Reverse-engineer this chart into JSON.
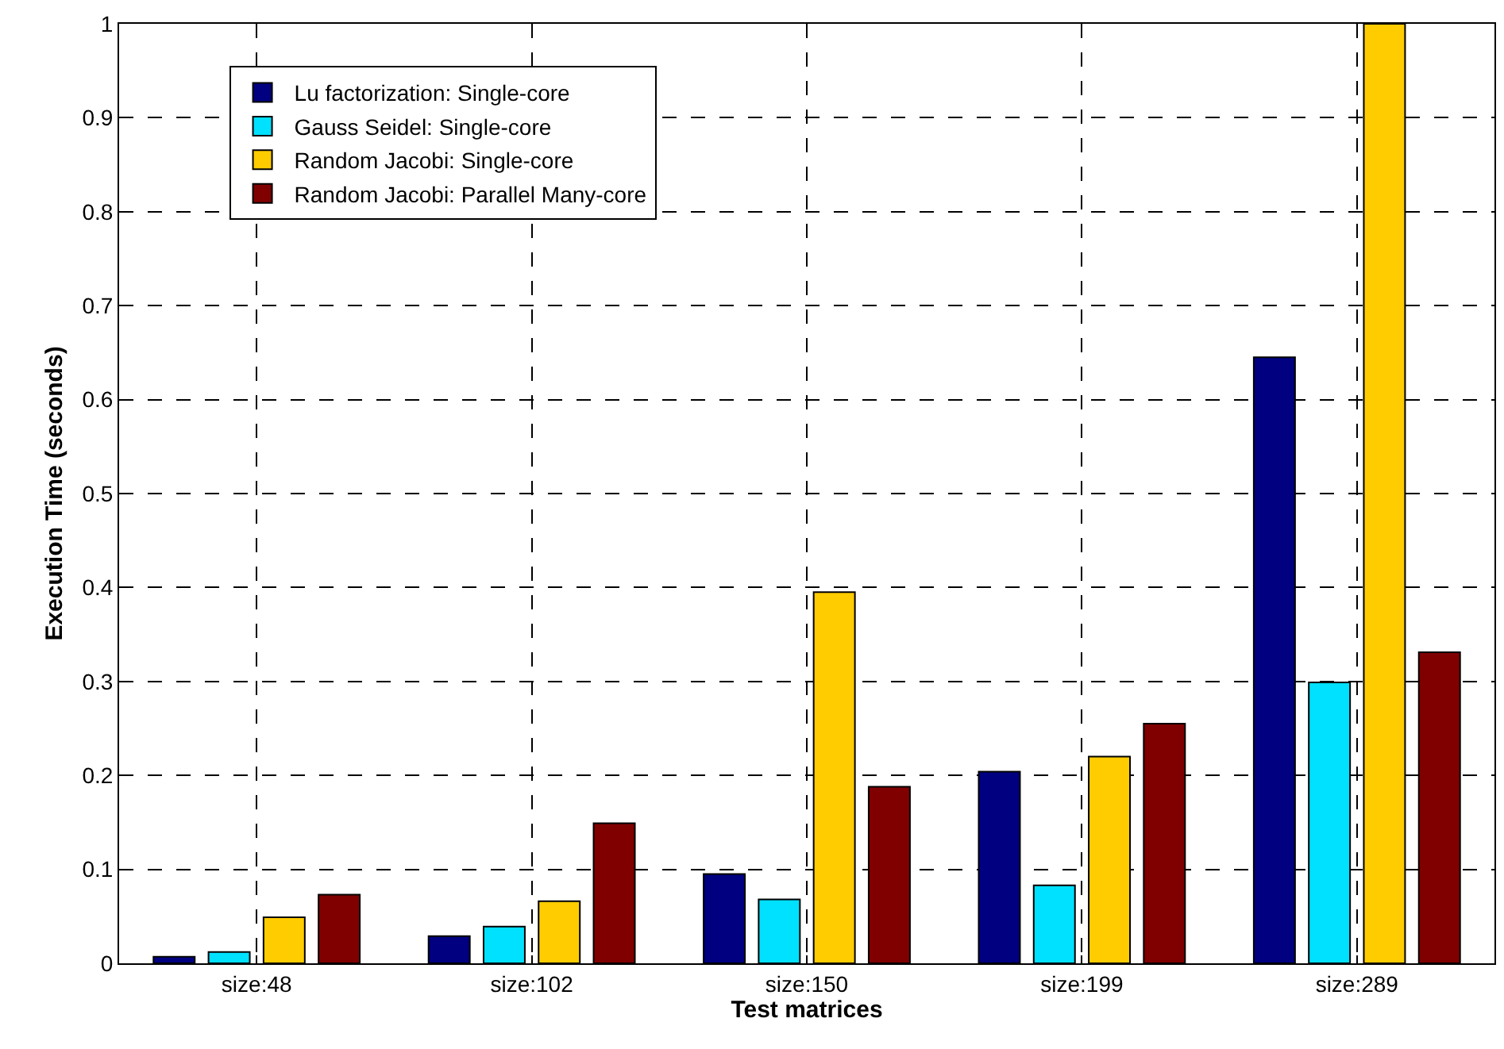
{
  "chart_data": {
    "type": "bar",
    "xlabel": "Test matrices",
    "ylabel": "Execution Time (seconds)",
    "categories": [
      "size:48",
      "size:102",
      "size:150",
      "size:199",
      "size:289"
    ],
    "series": [
      {
        "name": "Lu factorization: Single-core",
        "color": "#000080",
        "values": [
          0.007,
          0.029,
          0.095,
          0.204,
          0.645
        ]
      },
      {
        "name": "Gauss Seidel: Single-core",
        "color": "#00e0ff",
        "values": [
          0.012,
          0.039,
          0.068,
          0.083,
          0.299
        ]
      },
      {
        "name": "Random Jacobi: Single-core",
        "color": "#ffcc00",
        "values": [
          0.049,
          0.066,
          0.395,
          0.22,
          1.0
        ]
      },
      {
        "name": "Random Jacobi: Parallel Many-core",
        "color": "#800000",
        "values": [
          0.073,
          0.149,
          0.188,
          0.255,
          0.331
        ]
      }
    ],
    "ylim": [
      0,
      1
    ],
    "yticks": [
      0,
      0.1,
      0.2,
      0.3,
      0.4,
      0.5,
      0.6,
      0.7,
      0.8,
      0.9,
      1
    ],
    "grid": true,
    "legend": "top left"
  }
}
